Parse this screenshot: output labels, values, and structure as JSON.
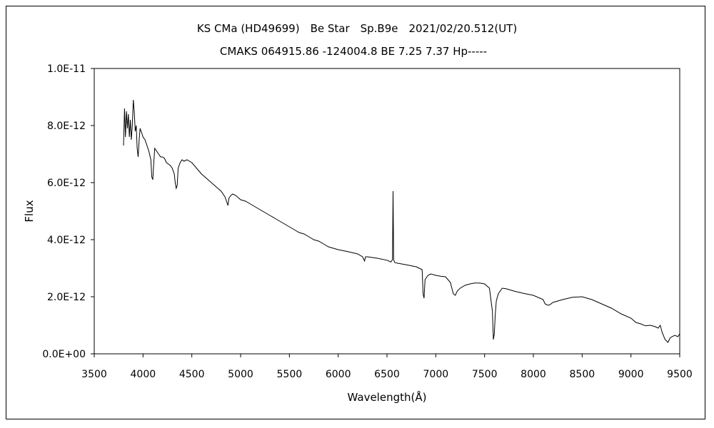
{
  "chart_data": {
    "type": "line",
    "title": "KS CMa (HD49699)　Be Star　Sp.B9e　2021/02/20.512(UT)",
    "subtitle": "CMAKS 064915.86 -124004.8 BE 7.25 7.37 Hp-----",
    "xlabel": "Wavelength(Å)",
    "ylabel": "Flux",
    "xlim": [
      3500,
      9500
    ],
    "ylim": [
      0,
      1e-11
    ],
    "x_ticks": [
      "3500",
      "4000",
      "4500",
      "5000",
      "5500",
      "6000",
      "6500",
      "7000",
      "7500",
      "8000",
      "8500",
      "9000",
      "9500"
    ],
    "y_ticks": [
      "0.0E+00",
      "2.0E-12",
      "4.0E-12",
      "6.0E-12",
      "8.0E-12",
      "1.0E-11"
    ],
    "grid": false,
    "line_color": "#000000",
    "series": [
      {
        "x": [
          3800,
          3810,
          3820,
          3830,
          3840,
          3850,
          3860,
          3870,
          3880,
          3890,
          3900,
          3910,
          3920,
          3930,
          3940,
          3950,
          3960,
          3970,
          3980,
          3990,
          4000,
          4020,
          4040,
          4060,
          4080,
          4090,
          4100,
          4110,
          4120,
          4140,
          4160,
          4180,
          4200,
          4220,
          4240,
          4260,
          4280,
          4300,
          4320,
          4330,
          4340,
          4350,
          4360,
          4380,
          4400,
          4420,
          4450,
          4500,
          4550,
          4600,
          4650,
          4700,
          4750,
          4800,
          4840,
          4860,
          4870,
          4880,
          4900,
          4920,
          4950,
          5000,
          5050,
          5100,
          5150,
          5200,
          5250,
          5300,
          5350,
          5400,
          5450,
          5500,
          5550,
          5600,
          5650,
          5700,
          5750,
          5800,
          5850,
          5900,
          5950,
          6000,
          6100,
          6200,
          6250,
          6270,
          6280,
          6300,
          6400,
          6500,
          6540,
          6556,
          6562,
          6568,
          6580,
          6600,
          6700,
          6800,
          6860,
          6870,
          6880,
          6890,
          6920,
          6950,
          7000,
          7050,
          7100,
          7150,
          7180,
          7200,
          7220,
          7250,
          7300,
          7350,
          7400,
          7450,
          7500,
          7550,
          7580,
          7590,
          7600,
          7610,
          7620,
          7640,
          7680,
          7720,
          7800,
          7900,
          8000,
          8100,
          8120,
          8150,
          8170,
          8200,
          8300,
          8400,
          8500,
          8600,
          8700,
          8800,
          8900,
          9000,
          9050,
          9100,
          9150,
          9200,
          9250,
          9280,
          9300,
          9320,
          9350,
          9380,
          9400,
          9420,
          9450,
          9480,
          9500
        ],
        "y": [
          7.3e-12,
          8.6e-12,
          7.6e-12,
          8.5e-12,
          7.9e-12,
          8.4e-12,
          7.6e-12,
          8.2e-12,
          7.5e-12,
          8e-12,
          8.9e-12,
          8.5e-12,
          7.8e-12,
          8e-12,
          7.2e-12,
          6.9e-12,
          7.5e-12,
          7.9e-12,
          7.8e-12,
          7.7e-12,
          7.6e-12,
          7.5e-12,
          7.3e-12,
          7.1e-12,
          6.8e-12,
          6.2e-12,
          6.1e-12,
          6.7e-12,
          7.2e-12,
          7.1e-12,
          7e-12,
          6.9e-12,
          6.9e-12,
          6.85e-12,
          6.7e-12,
          6.65e-12,
          6.6e-12,
          6.5e-12,
          6.3e-12,
          6e-12,
          5.8e-12,
          5.9e-12,
          6.5e-12,
          6.7e-12,
          6.8e-12,
          6.75e-12,
          6.8e-12,
          6.7e-12,
          6.5e-12,
          6.3e-12,
          6.15e-12,
          6e-12,
          5.85e-12,
          5.7e-12,
          5.5e-12,
          5.3e-12,
          5.2e-12,
          5.45e-12,
          5.55e-12,
          5.6e-12,
          5.55e-12,
          5.4e-12,
          5.35e-12,
          5.25e-12,
          5.15e-12,
          5.05e-12,
          4.95e-12,
          4.85e-12,
          4.75e-12,
          4.65e-12,
          4.55e-12,
          4.45e-12,
          4.35e-12,
          4.25e-12,
          4.2e-12,
          4.1e-12,
          4e-12,
          3.95e-12,
          3.85e-12,
          3.75e-12,
          3.7e-12,
          3.65e-12,
          3.58e-12,
          3.5e-12,
          3.4e-12,
          3.25e-12,
          3.4e-12,
          3.4e-12,
          3.35e-12,
          3.28e-12,
          3.22e-12,
          3.3e-12,
          5.7e-12,
          3.3e-12,
          3.2e-12,
          3.18e-12,
          3.12e-12,
          3.05e-12,
          2.95e-12,
          2.1e-12,
          1.95e-12,
          2.6e-12,
          2.75e-12,
          2.8e-12,
          2.75e-12,
          2.72e-12,
          2.7e-12,
          2.5e-12,
          2.1e-12,
          2.05e-12,
          2.2e-12,
          2.3e-12,
          2.4e-12,
          2.45e-12,
          2.48e-12,
          2.48e-12,
          2.45e-12,
          2.3e-12,
          1.5e-12,
          5e-13,
          7e-13,
          1.4e-12,
          1.85e-12,
          2.1e-12,
          2.3e-12,
          2.28e-12,
          2.2e-12,
          2.12e-12,
          2.05e-12,
          1.9e-12,
          1.75e-12,
          1.7e-12,
          1.72e-12,
          1.8e-12,
          1.9e-12,
          1.98e-12,
          2e-12,
          1.9e-12,
          1.75e-12,
          1.6e-12,
          1.4e-12,
          1.25e-12,
          1.1e-12,
          1.05e-12,
          9.8e-13,
          1e-12,
          9.5e-13,
          9e-13,
          1e-12,
          7.5e-13,
          5e-13,
          4e-13,
          5.5e-13,
          6e-13,
          6.5e-13,
          6e-13,
          7e-13
        ]
      }
    ]
  }
}
